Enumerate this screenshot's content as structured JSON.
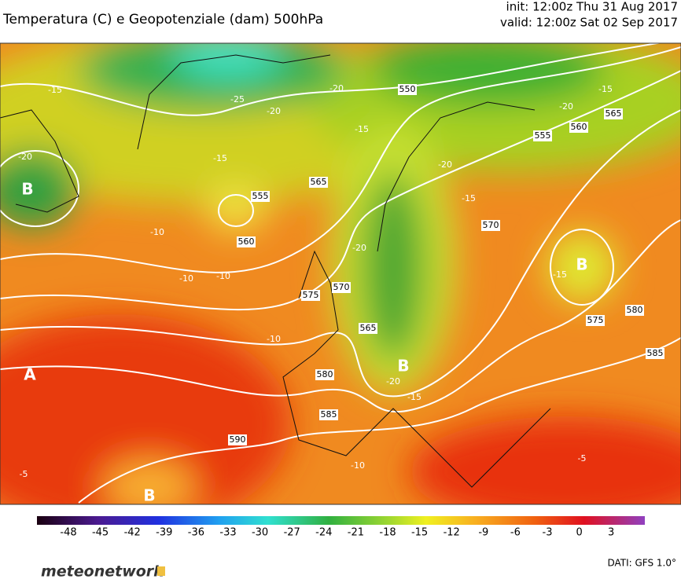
{
  "header": {
    "title": "Temperatura (C) e Geopotenziale (dam) 500hPa",
    "init": "init: 12:00z Thu 31 Aug 2017",
    "valid": "valid: 12:00z Sat 02 Sep 2017"
  },
  "map": {
    "contour_labels": [
      "550",
      "555",
      "560",
      "565",
      "-15",
      "-20",
      "-15",
      "555",
      "565",
      "560",
      "570",
      "575",
      "565",
      "580",
      "585",
      "590",
      "575",
      "580",
      "585",
      "570",
      "-20",
      "-15",
      "-20",
      "-25",
      "-20",
      "-15",
      "-10",
      "-10",
      "-10",
      "-10",
      "-20",
      "-20",
      "-15",
      "-15",
      "-15",
      "-10",
      "-5",
      "-5",
      "-20"
    ],
    "centers": [
      "B",
      "B",
      "B",
      "A",
      "B"
    ]
  },
  "colorbar": {
    "ticks": [
      -48,
      -45,
      -42,
      -39,
      -36,
      -33,
      -30,
      -27,
      -24,
      -21,
      -18,
      -15,
      -12,
      -9,
      -6,
      -3,
      0,
      3
    ]
  },
  "footer": {
    "logo": "meteonetwork",
    "source": "DATI: GFS 1.0°"
  }
}
